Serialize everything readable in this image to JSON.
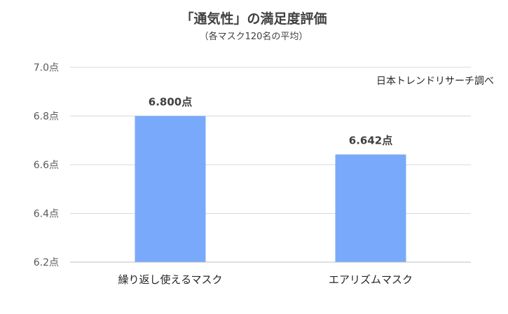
{
  "chart_data": {
    "type": "bar",
    "title": "「通気性」の満足度評価",
    "subtitle": "（各マスク120名の平均）",
    "source_note": "日本トレンドリサーチ調べ",
    "categories": [
      "繰り返し使えるマスク",
      "エアリズムマスク"
    ],
    "values": [
      6.8,
      6.642
    ],
    "data_labels": [
      "6.800点",
      "6.642点"
    ],
    "ylim": [
      6.2,
      7.0
    ],
    "yticks": [
      6.2,
      6.4,
      6.6,
      6.8,
      7.0
    ],
    "ytick_labels": [
      "6.2点",
      "6.4点",
      "6.6点",
      "6.8点",
      "7.0点"
    ],
    "xlabel": "",
    "ylabel": "",
    "grid": true,
    "bar_color": "#78a9fb"
  }
}
